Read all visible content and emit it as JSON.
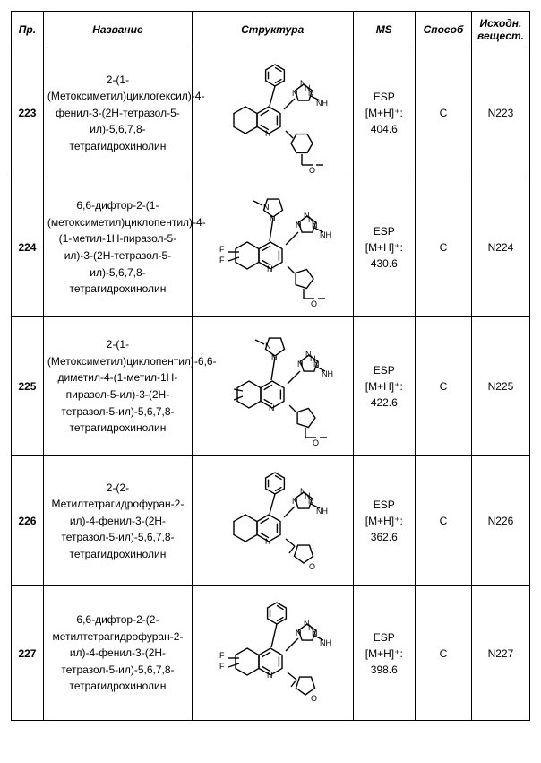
{
  "columns": {
    "pr": "Пр.",
    "name": "Название",
    "struct": "Структура",
    "ms": "MS",
    "method": "Способ",
    "src": "Исходн. вещест."
  },
  "rows": [
    {
      "pr": "223",
      "name": "2-(1-(Метоксиметил)циклогексил)-4-фенил-3-(2H-тетразол-5-ил)-5,6,7,8-тетрагидрохинолин",
      "ms_l1": "ESP",
      "ms_l2": "[M+H]⁺:",
      "ms_l3": "404.6",
      "method": "C",
      "src": "N223",
      "structure": 0
    },
    {
      "pr": "224",
      "name": "6,6-дифтор-2-(1-(метоксиметил)циклопентил)-4-(1-метил-1H-пиразол-5-ил)-3-(2H-тетразол-5-ил)-5,6,7,8-тетрагидрохинолин",
      "ms_l1": "ESP",
      "ms_l2": "[M+H]⁺:",
      "ms_l3": "430.6",
      "method": "C",
      "src": "N224",
      "structure": 1
    },
    {
      "pr": "225",
      "name": "2-(1-(Метоксиметил)циклопентил)-6,6-диметил-4-(1-метил-1H-пиразол-5-ил)-3-(2H-тетразол-5-ил)-5,6,7,8-тетрагидрохинолин",
      "ms_l1": "ESP",
      "ms_l2": "[M+H]⁺:",
      "ms_l3": "422.6",
      "method": "C",
      "src": "N225",
      "structure": 2
    },
    {
      "pr": "226",
      "name": "2-(2-Метилтетрагидрофуран-2-ил)-4-фенил-3-(2H-тетразол-5-ил)-5,6,7,8-тетрагидрохинолин",
      "ms_l1": "ESP",
      "ms_l2": "[M+H]⁺:",
      "ms_l3": "362.6",
      "method": "C",
      "src": "N226",
      "structure": 3
    },
    {
      "pr": "227",
      "name": "6,6-дифтор-2-(2-метилтетрагидрофуран-2-ил)-4-фенил-3-(2H-тетразол-5-ил)-5,6,7,8-тетрагидрохинолин",
      "ms_l1": "ESP",
      "ms_l2": "[M+H]⁺:",
      "ms_l3": "398.6",
      "method": "C",
      "src": "N227",
      "structure": 4
    }
  ],
  "svg": {
    "stroke": "#000000",
    "stroke_width": 1.4,
    "font_size": 9
  }
}
